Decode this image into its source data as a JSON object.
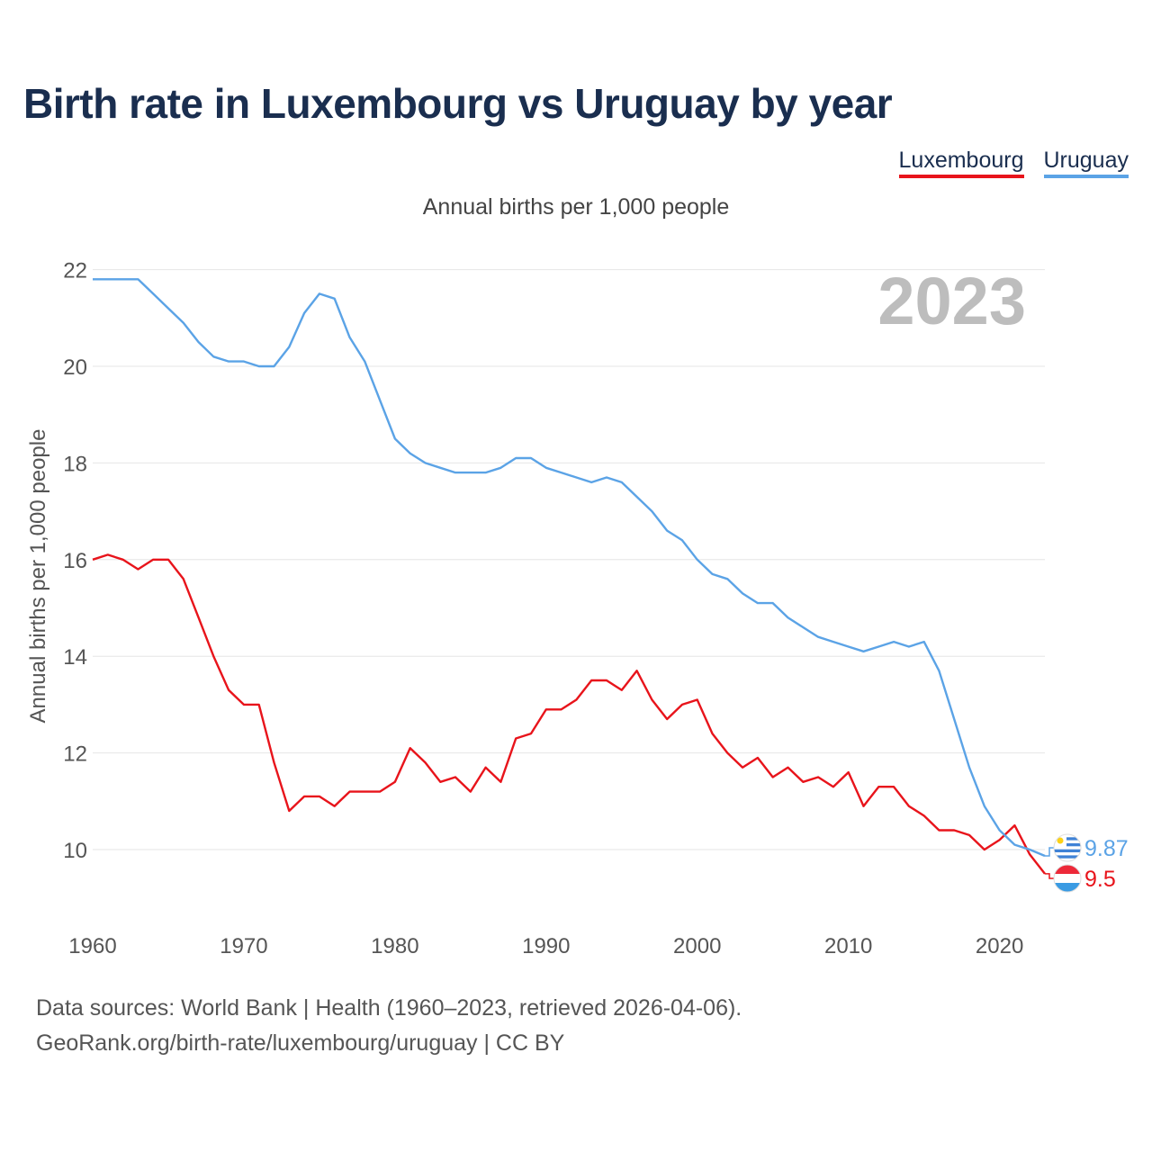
{
  "chart_data": {
    "type": "line",
    "title": "Birth rate in Luxembourg vs Uruguay by year",
    "subtitle": "Annual births per 1,000 people",
    "ylabel": "Annual births per 1,000 people",
    "xlabel": "",
    "year_label": "2023",
    "xlim": [
      1960,
      2023
    ],
    "ylim": [
      9,
      22.5
    ],
    "x_ticks": [
      1960,
      1970,
      1980,
      1990,
      2000,
      2010,
      2020
    ],
    "y_ticks": [
      10,
      12,
      14,
      16,
      18,
      20,
      22
    ],
    "x": [
      1960,
      1961,
      1962,
      1963,
      1964,
      1965,
      1966,
      1967,
      1968,
      1969,
      1970,
      1971,
      1972,
      1973,
      1974,
      1975,
      1976,
      1977,
      1978,
      1979,
      1980,
      1981,
      1982,
      1983,
      1984,
      1985,
      1986,
      1987,
      1988,
      1989,
      1990,
      1991,
      1992,
      1993,
      1994,
      1995,
      1996,
      1997,
      1998,
      1999,
      2000,
      2001,
      2002,
      2003,
      2004,
      2005,
      2006,
      2007,
      2008,
      2009,
      2010,
      2011,
      2012,
      2013,
      2014,
      2015,
      2016,
      2017,
      2018,
      2019,
      2020,
      2021,
      2022,
      2023
    ],
    "series": [
      {
        "name": "Luxembourg",
        "color": "#e8141b",
        "end_label": "9.5",
        "values": [
          16.0,
          16.1,
          16.0,
          15.8,
          16.0,
          16.0,
          15.6,
          14.8,
          14.0,
          13.3,
          13.0,
          13.0,
          11.8,
          10.8,
          11.1,
          11.1,
          10.9,
          11.2,
          11.2,
          11.2,
          11.4,
          12.1,
          11.8,
          11.4,
          11.5,
          11.2,
          11.7,
          11.4,
          12.3,
          12.4,
          12.9,
          12.9,
          13.1,
          13.5,
          13.5,
          13.3,
          13.7,
          13.1,
          12.7,
          13.0,
          13.1,
          12.4,
          12.0,
          11.7,
          11.9,
          11.5,
          11.7,
          11.4,
          11.5,
          11.3,
          11.6,
          10.9,
          11.3,
          11.3,
          10.9,
          10.7,
          10.4,
          10.4,
          10.3,
          10.0,
          10.2,
          10.5,
          9.9,
          9.5
        ]
      },
      {
        "name": "Uruguay",
        "color": "#5ba3e6",
        "end_label": "9.87",
        "values": [
          21.8,
          21.8,
          21.8,
          21.8,
          21.5,
          21.2,
          20.9,
          20.5,
          20.2,
          20.1,
          20.1,
          20.0,
          20.0,
          20.4,
          21.1,
          21.5,
          21.4,
          20.6,
          20.1,
          19.3,
          18.5,
          18.2,
          18.0,
          17.9,
          17.8,
          17.8,
          17.8,
          17.9,
          18.1,
          18.1,
          17.9,
          17.8,
          17.7,
          17.6,
          17.7,
          17.6,
          17.3,
          17.0,
          16.6,
          16.4,
          16.0,
          15.7,
          15.6,
          15.3,
          15.1,
          15.1,
          14.8,
          14.6,
          14.4,
          14.3,
          14.2,
          14.1,
          14.2,
          14.3,
          14.2,
          14.3,
          13.7,
          12.7,
          11.7,
          10.9,
          10.4,
          10.1,
          10.0,
          9.87
        ]
      }
    ]
  },
  "sources": {
    "line1": "Data sources: World Bank | Health (1960–2023, retrieved 2026-04-06).",
    "line2": "GeoRank.org/birth-rate/luxembourg/uruguay | CC BY"
  },
  "icons": {
    "luxembourg_flag": "luxembourg-flag-icon",
    "uruguay_flag": "uruguay-flag-icon"
  }
}
